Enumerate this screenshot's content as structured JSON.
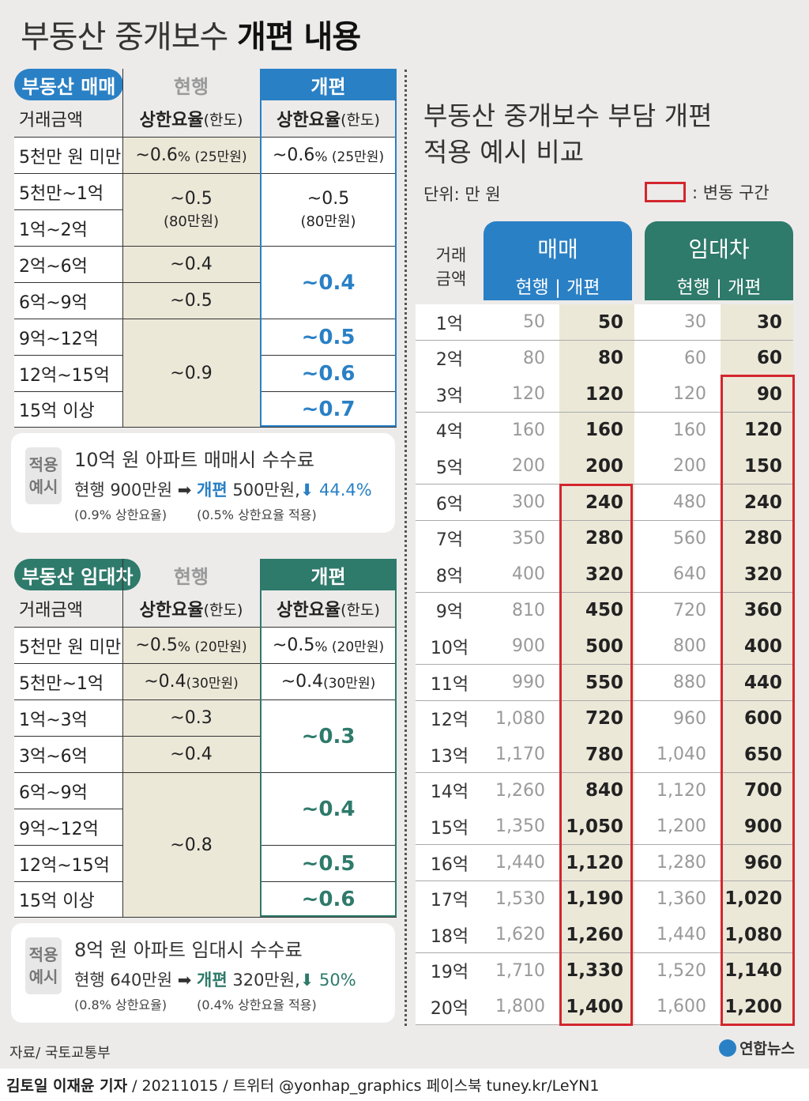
{
  "title": {
    "normal": "부동산 중개보수 ",
    "bold": "개편 내용"
  },
  "sale": {
    "pill": "부동산 매매",
    "current": "현행",
    "new": "개편",
    "header": {
      "amount": "거래금액",
      "rate": "상한요율",
      "limit": "(한도)"
    },
    "rows": [
      "5천만 원 미만",
      "5천만~1억",
      "1억~2억",
      "2억~6억",
      "6억~9억",
      "9억~12억",
      "12억~15억",
      "15억 이상"
    ],
    "r0_cur": "~0.6",
    "r0_cur_pct": "% (25만원)",
    "r0_new": "~0.6",
    "r0_new_pct": "% (25만원)",
    "m1_cur": "~0.5",
    "m1_cur_sub": "(80만원)",
    "m1_new": "~0.5",
    "m1_new_sub": "(80만원)",
    "r3_cur": "~0.4",
    "r4_cur": "~0.5",
    "m2_new": "~0.4",
    "m3_cur": "~0.9",
    "r5_new": "~0.5",
    "r6_new": "~0.6",
    "r7_new": "~0.7"
  },
  "sale_example": {
    "tag1": "적용",
    "tag2": "예시",
    "head": "10억 원 아파트 매매시 수수료",
    "cur": "현행 900만원",
    "arrow": "➡",
    "new_label": "개편",
    "new_val": " 500만원,",
    "down": "⬇ 44.4%",
    "cur_note": "(0.9% 상한요율)",
    "new_note": "(0.5% 상한요율 적용)"
  },
  "lease": {
    "pill": "부동산 임대차",
    "current": "현행",
    "new": "개편",
    "header": {
      "amount": "거래금액",
      "rate": "상한요율",
      "limit": "(한도)"
    },
    "rows": [
      "5천만 원 미만",
      "5천만~1억",
      "1억~3억",
      "3억~6억",
      "6억~9억",
      "9억~12억",
      "12억~15억",
      "15억 이상"
    ],
    "r0_cur": "~0.5",
    "r0_cur_pct": "% (20만원)",
    "r0_new": "~0.5",
    "r0_new_pct": "% (20만원)",
    "r1_cur": "~0.4",
    "r1_cur_pct": " (30만원)",
    "r1_new": "~0.4",
    "r1_new_pct": " (30만원)",
    "r2_cur": "~0.3",
    "r3_cur": "~0.4",
    "m1_new": "~0.3",
    "m2_cur": "~0.8",
    "m2_new": "~0.4",
    "r6_new": "~0.5",
    "r7_new": "~0.6"
  },
  "lease_example": {
    "tag1": "적용",
    "tag2": "예시",
    "head": "8억 원 아파트 임대시 수수료",
    "cur": "현행 640만원",
    "arrow": "➡",
    "new_label": "개편",
    "new_val": " 320만원,",
    "down": "⬇ 50%",
    "cur_note": "(0.8% 상한요율)",
    "new_note": "(0.4% 상한요율 적용)"
  },
  "compare": {
    "title1": "부동산 중개보수 부담 개편",
    "title2": "적용 예시 비교",
    "unit": "단위: 만 원",
    "legend": ": 변동 구간",
    "col_label1": "거래",
    "col_label2": "금액",
    "sale_group": "매매",
    "lease_group": "임대차",
    "sub": "현행  |  개편",
    "rows": [
      [
        "1억",
        "50",
        "50",
        "30",
        "30"
      ],
      [
        "2억",
        "80",
        "80",
        "60",
        "60"
      ],
      [
        "3억",
        "120",
        "120",
        "120",
        "90"
      ],
      [
        "4억",
        "160",
        "160",
        "160",
        "120"
      ],
      [
        "5억",
        "200",
        "200",
        "200",
        "150"
      ],
      [
        "6억",
        "300",
        "240",
        "480",
        "240"
      ],
      [
        "7억",
        "350",
        "280",
        "560",
        "280"
      ],
      [
        "8억",
        "400",
        "320",
        "640",
        "320"
      ],
      [
        "9억",
        "810",
        "450",
        "720",
        "360"
      ],
      [
        "10억",
        "900",
        "500",
        "800",
        "400"
      ],
      [
        "11억",
        "990",
        "550",
        "880",
        "440"
      ],
      [
        "12억",
        "1,080",
        "720",
        "960",
        "600"
      ],
      [
        "13억",
        "1,170",
        "780",
        "1,040",
        "650"
      ],
      [
        "14억",
        "1,260",
        "840",
        "1,120",
        "700"
      ],
      [
        "15억",
        "1,350",
        "1,050",
        "1,200",
        "900"
      ],
      [
        "16억",
        "1,440",
        "1,120",
        "1,280",
        "960"
      ],
      [
        "17억",
        "1,530",
        "1,190",
        "1,360",
        "1,020"
      ],
      [
        "18억",
        "1,620",
        "1,260",
        "1,440",
        "1,080"
      ],
      [
        "19억",
        "1,710",
        "1,330",
        "1,520",
        "1,140"
      ],
      [
        "20억",
        "1,800",
        "1,400",
        "1,600",
        "1,200"
      ]
    ]
  },
  "colors": {
    "blue": "#2a80c5",
    "green": "#2e7a6b",
    "red": "#d3262e",
    "beige": "#ece8d8"
  },
  "source": "자료/ 국토교통부",
  "logo": "연합뉴스",
  "footer": {
    "reporter": "김토일 이재윤 기자",
    "rest": "/ 20211015 / 트위터 @yonhap_graphics  페이스북 tuney.kr/LeYN1"
  }
}
